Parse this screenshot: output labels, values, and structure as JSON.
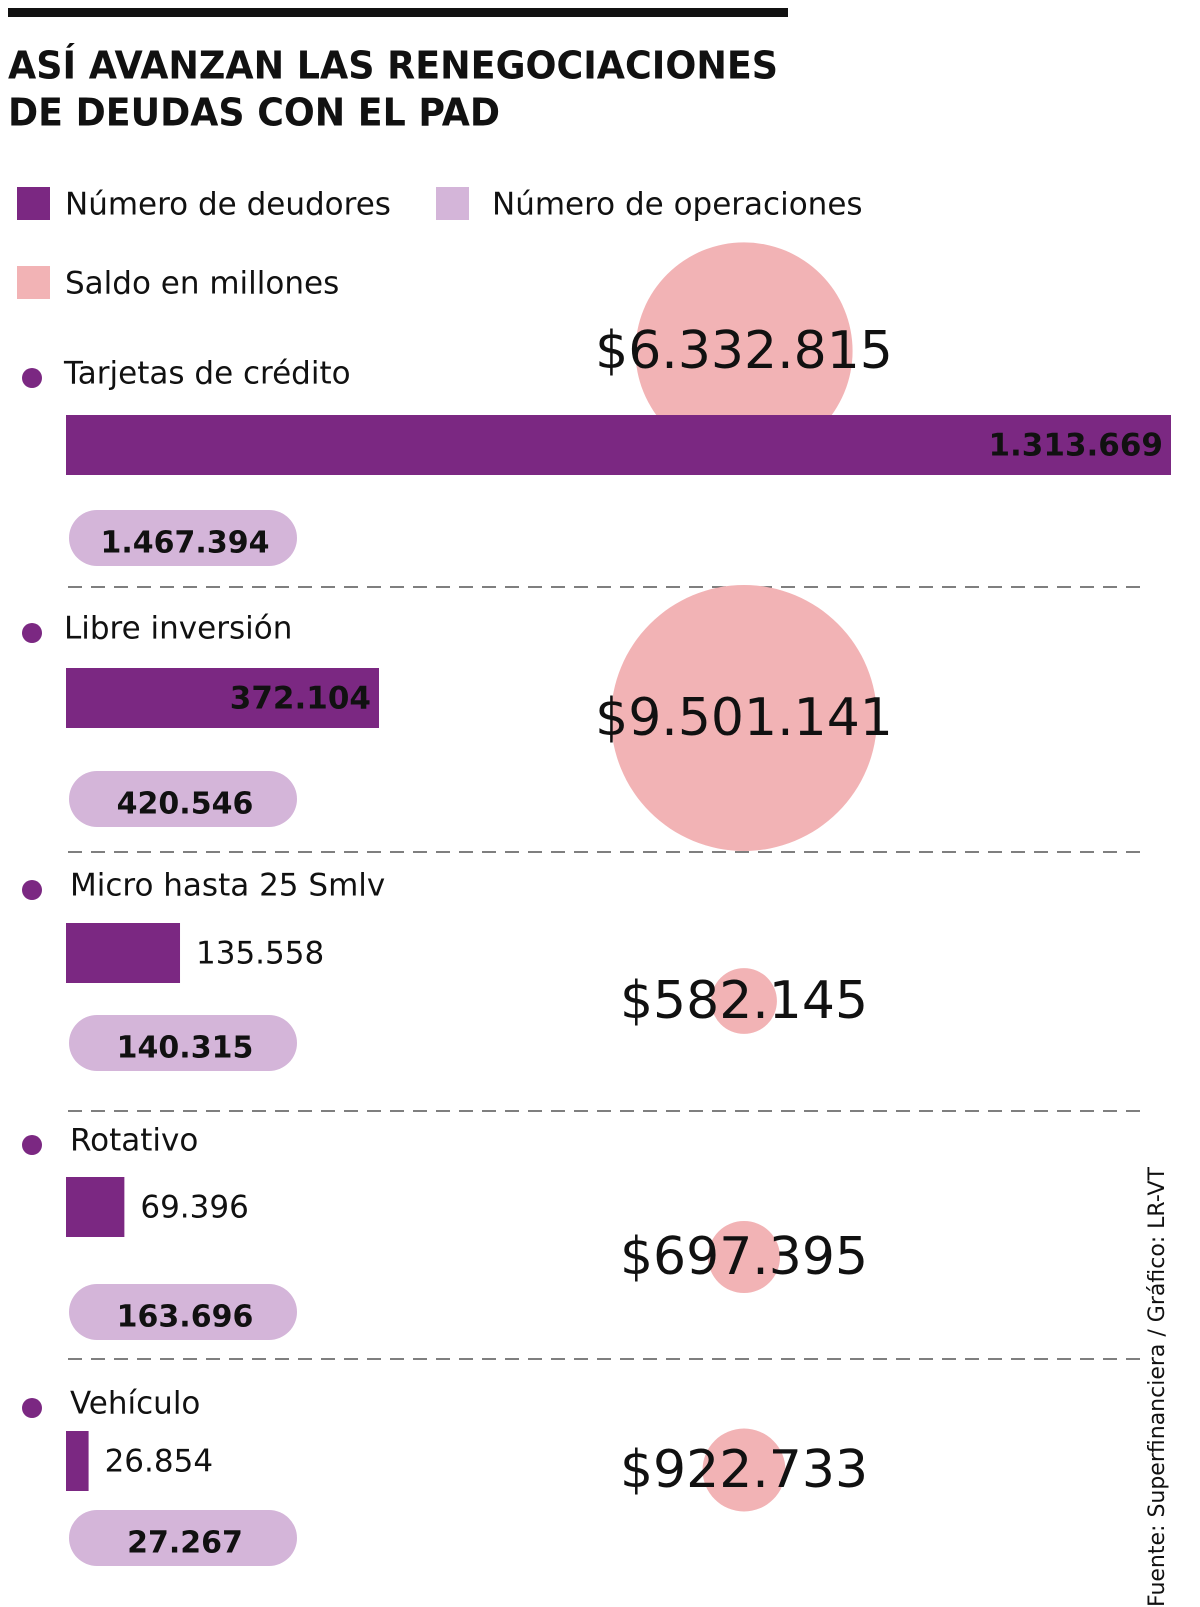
{
  "chart_data": {
    "type": "bar",
    "title": [
      "ASÍ AVANZAN LAS RENEGOCIACIONES",
      "DE DEUDAS CON EL PAD"
    ],
    "categories": [
      "Tarjetas de crédito",
      "Libre inversión",
      "Micro hasta 25 Smlv",
      "Rotativo",
      "Vehículo"
    ],
    "series": [
      {
        "name": "Número de deudores",
        "color": "#7b2882",
        "values": [
          1313669,
          372104,
          135558,
          69396,
          26854
        ],
        "value_labels": [
          "1.313.669",
          "372.104",
          "135.558",
          "69.396",
          "26.854"
        ]
      },
      {
        "name": "Número de operaciones",
        "color": "#d4b5d9",
        "values": [
          1467394,
          420546,
          140315,
          163696,
          27267
        ],
        "value_labels": [
          "1.467.394",
          "420.546",
          "140.315",
          "163.696",
          "27.267"
        ]
      },
      {
        "name": "Saldo en millones",
        "color": "#f2b3b5",
        "values": [
          6332815,
          9501141,
          582145,
          697395,
          922733
        ],
        "value_labels": [
          "$6.332.815",
          "$9.501.141",
          "$582.145",
          "$697.395",
          "$922.733"
        ]
      }
    ],
    "source": "Fuente: Superfinanciera  / Gráfico: LR-VT"
  }
}
